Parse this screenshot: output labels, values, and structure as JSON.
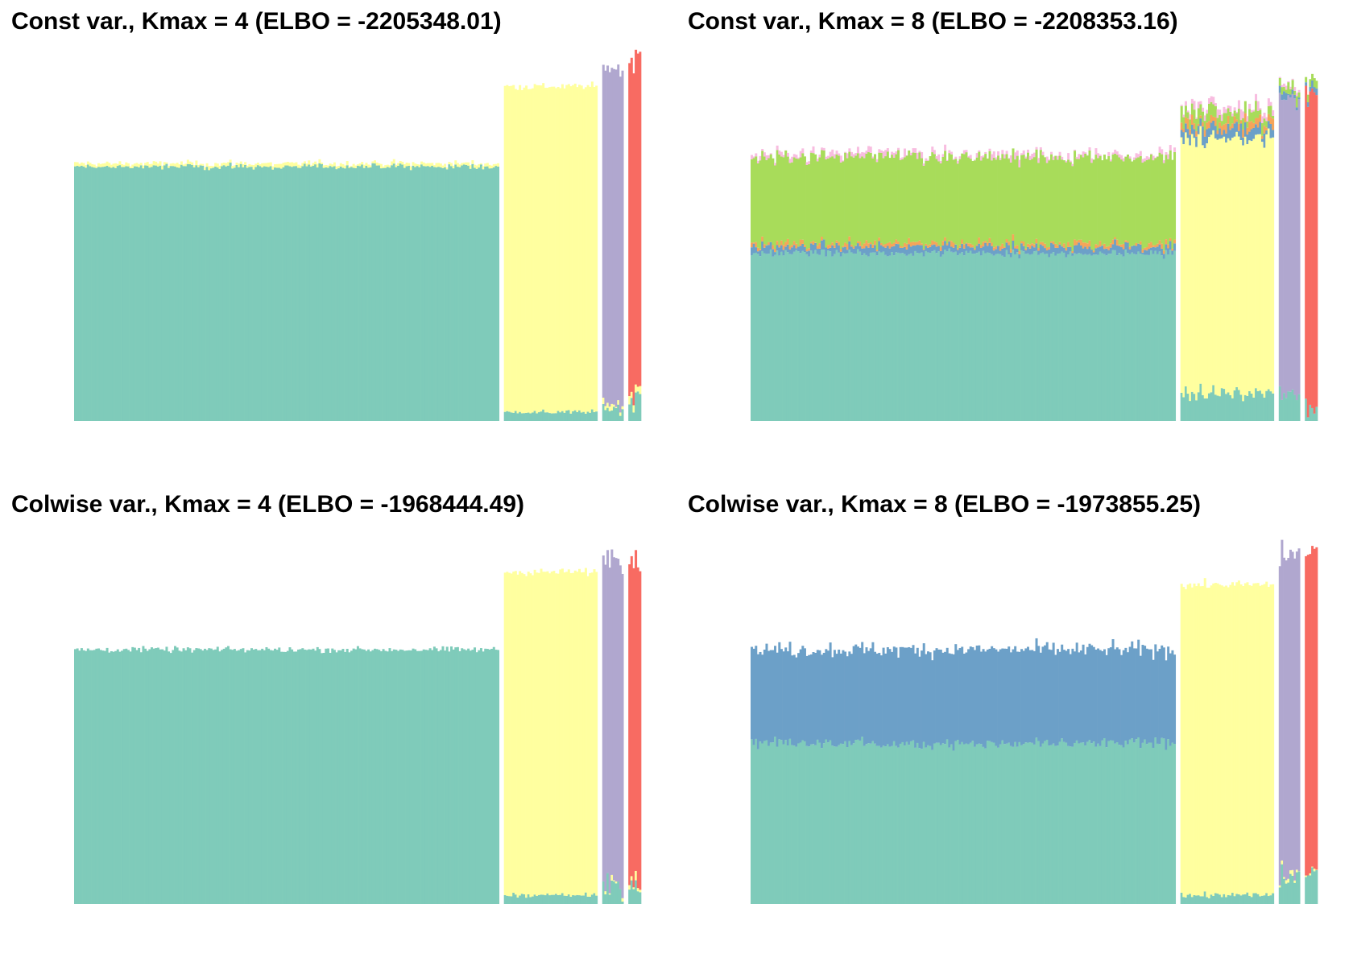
{
  "colors": {
    "k1": "#7fcbba",
    "k2": "#ffff9f",
    "k3": "#b0a7cf",
    "k4": "#f86b62",
    "k5": "#6ca0c8",
    "k6": "#f6a55a",
    "k7": "#a8dc5a",
    "k8": "#f8bde0"
  },
  "chart_data": [
    {
      "type": "bar",
      "title": "Const var., Kmax = 4 (ELBO = -2205348.01)",
      "groups": [
        {
          "n": 200,
          "factors": [
            {
              "k": "k1",
              "mean": 1.0,
              "jitter": 0.008
            },
            {
              "k": "k2",
              "mean": 0.012,
              "jitter": 0.004
            }
          ]
        },
        {
          "n": 44,
          "factors": [
            {
              "k": "k1",
              "mean": 0.035,
              "jitter": 0.006
            },
            {
              "k": "k2",
              "mean": 1.28,
              "jitter": 0.008
            }
          ]
        },
        {
          "n": 10,
          "factors": [
            {
              "k": "k1",
              "mean": 0.05,
              "jitter": 0.02
            },
            {
              "k": "k2",
              "mean": 0.02,
              "jitter": 0.01
            },
            {
              "k": "k3",
              "mean": 1.32,
              "jitter": 0.006
            }
          ]
        },
        {
          "n": 6,
          "factors": [
            {
              "k": "k1",
              "mean": 0.08,
              "jitter": 0.03
            },
            {
              "k": "k2",
              "mean": 0.03,
              "jitter": 0.01
            },
            {
              "k": "k4",
              "mean": 1.31,
              "jitter": 0.006
            }
          ]
        }
      ]
    },
    {
      "type": "bar",
      "title": "Const var., Kmax = 8 (ELBO = -2208353.16)",
      "groups": [
        {
          "n": 200,
          "factors": [
            {
              "k": "k1",
              "mean": 0.66,
              "jitter": 0.012
            },
            {
              "k": "k5",
              "mean": 0.025,
              "jitter": 0.01
            },
            {
              "k": "k6",
              "mean": 0.012,
              "jitter": 0.008
            },
            {
              "k": "k7",
              "mean": 0.34,
              "jitter": 0.012
            },
            {
              "k": "k8",
              "mean": 0.012,
              "jitter": 0.012
            }
          ]
        },
        {
          "n": 44,
          "factors": [
            {
              "k": "k1",
              "mean": 0.11,
              "jitter": 0.02
            },
            {
              "k": "k2",
              "mean": 1.0,
              "jitter": 0.015
            },
            {
              "k": "k5",
              "mean": 0.04,
              "jitter": 0.02
            },
            {
              "k": "k6",
              "mean": 0.025,
              "jitter": 0.012
            },
            {
              "k": "k7",
              "mean": 0.04,
              "jitter": 0.02
            },
            {
              "k": "k8",
              "mean": 0.02,
              "jitter": 0.015
            }
          ]
        },
        {
          "n": 10,
          "factors": [
            {
              "k": "k1",
              "mean": 0.12,
              "jitter": 0.04
            },
            {
              "k": "k3",
              "mean": 1.16,
              "jitter": 0.015
            },
            {
              "k": "k5",
              "mean": 0.02,
              "jitter": 0.01
            },
            {
              "k": "k7",
              "mean": 0.03,
              "jitter": 0.015
            },
            {
              "k": "k8",
              "mean": 0.01,
              "jitter": 0.008
            }
          ]
        },
        {
          "n": 6,
          "factors": [
            {
              "k": "k1",
              "mean": 0.05,
              "jitter": 0.03
            },
            {
              "k": "k4",
              "mean": 1.24,
              "jitter": 0.02
            },
            {
              "k": "k5",
              "mean": 0.02,
              "jitter": 0.01
            },
            {
              "k": "k7",
              "mean": 0.03,
              "jitter": 0.01
            }
          ]
        }
      ]
    },
    {
      "type": "bar",
      "title": "Colwise var., Kmax = 4 (ELBO = -1968444.49)",
      "groups": [
        {
          "n": 200,
          "factors": [
            {
              "k": "k1",
              "mean": 1.0,
              "jitter": 0.008
            }
          ]
        },
        {
          "n": 44,
          "factors": [
            {
              "k": "k1",
              "mean": 0.035,
              "jitter": 0.006
            },
            {
              "k": "k2",
              "mean": 1.27,
              "jitter": 0.008
            }
          ]
        },
        {
          "n": 10,
          "factors": [
            {
              "k": "k1",
              "mean": 0.08,
              "jitter": 0.04
            },
            {
              "k": "k2",
              "mean": 0.01,
              "jitter": 0.01
            },
            {
              "k": "k3",
              "mean": 1.28,
              "jitter": 0.008
            }
          ]
        },
        {
          "n": 6,
          "factors": [
            {
              "k": "k1",
              "mean": 0.08,
              "jitter": 0.04
            },
            {
              "k": "k2",
              "mean": 0.02,
              "jitter": 0.01
            },
            {
              "k": "k4",
              "mean": 1.26,
              "jitter": 0.006
            }
          ]
        }
      ]
    },
    {
      "type": "bar",
      "title": "Colwise var., Kmax = 8 (ELBO = -1973855.25)",
      "groups": [
        {
          "n": 200,
          "factors": [
            {
              "k": "k1",
              "mean": 0.63,
              "jitter": 0.015
            },
            {
              "k": "k5",
              "mean": 0.37,
              "jitter": 0.015
            }
          ]
        },
        {
          "n": 44,
          "factors": [
            {
              "k": "k1",
              "mean": 0.035,
              "jitter": 0.008
            },
            {
              "k": "k2",
              "mean": 1.22,
              "jitter": 0.008
            }
          ]
        },
        {
          "n": 10,
          "factors": [
            {
              "k": "k1",
              "mean": 0.1,
              "jitter": 0.04
            },
            {
              "k": "k2",
              "mean": 0.01,
              "jitter": 0.01
            },
            {
              "k": "k3",
              "mean": 1.26,
              "jitter": 0.008
            }
          ]
        },
        {
          "n": 6,
          "factors": [
            {
              "k": "k1",
              "mean": 0.1,
              "jitter": 0.03
            },
            {
              "k": "k2",
              "mean": 0.01,
              "jitter": 0.01
            },
            {
              "k": "k4",
              "mean": 1.26,
              "jitter": 0.006
            }
          ]
        }
      ]
    }
  ]
}
